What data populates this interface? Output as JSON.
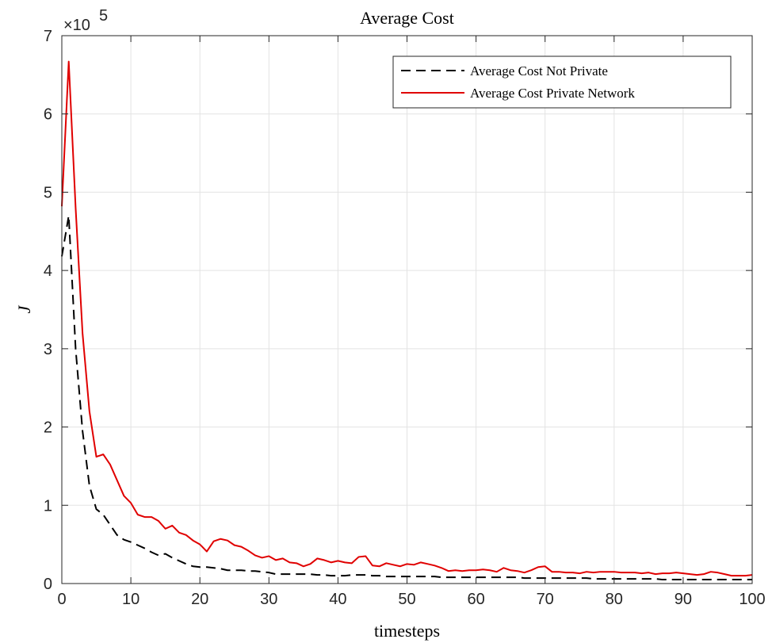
{
  "chart_data": {
    "type": "line",
    "title": "Average Cost",
    "xlabel": "timesteps",
    "ylabel": "J",
    "xlim": [
      0,
      100
    ],
    "ylim": [
      0,
      7
    ],
    "y_multiplier_base": "×10",
    "y_multiplier_exp": "5",
    "xticks": [
      0,
      10,
      20,
      30,
      40,
      50,
      60,
      70,
      80,
      90,
      100
    ],
    "yticks": [
      0,
      1,
      2,
      3,
      4,
      5,
      6,
      7
    ],
    "grid": true,
    "legend_position": "top-right",
    "series": [
      {
        "name": "Average Cost Not Private",
        "color": "#000000",
        "style": "dashed",
        "x": [
          0,
          1,
          2,
          3,
          4,
          5,
          6,
          7,
          8,
          9,
          10,
          11,
          12,
          13,
          14,
          15,
          16,
          17,
          18,
          19,
          20,
          21,
          22,
          23,
          24,
          25,
          26,
          27,
          28,
          29,
          30,
          31,
          32,
          33,
          34,
          35,
          36,
          37,
          38,
          39,
          40,
          41,
          42,
          43,
          44,
          45,
          46,
          47,
          48,
          49,
          50,
          51,
          52,
          53,
          54,
          55,
          56,
          57,
          58,
          59,
          60,
          61,
          62,
          63,
          64,
          65,
          66,
          67,
          68,
          69,
          70,
          71,
          72,
          73,
          74,
          75,
          76,
          77,
          78,
          79,
          80,
          81,
          82,
          83,
          84,
          85,
          86,
          87,
          88,
          89,
          90,
          91,
          92,
          93,
          94,
          95,
          96,
          97,
          98,
          99,
          100
        ],
        "y": [
          4.18,
          4.7,
          3.0,
          1.95,
          1.25,
          0.95,
          0.88,
          0.75,
          0.62,
          0.56,
          0.53,
          0.49,
          0.45,
          0.4,
          0.36,
          0.38,
          0.33,
          0.29,
          0.25,
          0.22,
          0.21,
          0.21,
          0.2,
          0.19,
          0.17,
          0.17,
          0.17,
          0.16,
          0.16,
          0.15,
          0.14,
          0.12,
          0.12,
          0.12,
          0.12,
          0.12,
          0.12,
          0.11,
          0.11,
          0.1,
          0.1,
          0.1,
          0.11,
          0.11,
          0.11,
          0.1,
          0.1,
          0.09,
          0.09,
          0.09,
          0.09,
          0.09,
          0.09,
          0.09,
          0.09,
          0.08,
          0.08,
          0.08,
          0.08,
          0.08,
          0.08,
          0.08,
          0.08,
          0.08,
          0.08,
          0.08,
          0.08,
          0.07,
          0.07,
          0.07,
          0.07,
          0.07,
          0.07,
          0.07,
          0.07,
          0.07,
          0.07,
          0.06,
          0.06,
          0.06,
          0.06,
          0.06,
          0.06,
          0.06,
          0.06,
          0.06,
          0.06,
          0.05,
          0.05,
          0.05,
          0.05,
          0.05,
          0.05,
          0.05,
          0.05,
          0.05,
          0.05,
          0.05,
          0.05,
          0.05,
          0.05
        ]
      },
      {
        "name": "Average Cost Private Network",
        "color": "#e00000",
        "style": "solid",
        "x": [
          0,
          1,
          2,
          3,
          4,
          5,
          6,
          7,
          8,
          9,
          10,
          11,
          12,
          13,
          14,
          15,
          16,
          17,
          18,
          19,
          20,
          21,
          22,
          23,
          24,
          25,
          26,
          27,
          28,
          29,
          30,
          31,
          32,
          33,
          34,
          35,
          36,
          37,
          38,
          39,
          40,
          41,
          42,
          43,
          44,
          45,
          46,
          47,
          48,
          49,
          50,
          51,
          52,
          53,
          54,
          55,
          56,
          57,
          58,
          59,
          60,
          61,
          62,
          63,
          64,
          65,
          66,
          67,
          68,
          69,
          70,
          71,
          72,
          73,
          74,
          75,
          76,
          77,
          78,
          79,
          80,
          81,
          82,
          83,
          84,
          85,
          86,
          87,
          88,
          89,
          90,
          91,
          92,
          93,
          94,
          95,
          96,
          97,
          98,
          99,
          100
        ],
        "y": [
          4.82,
          6.67,
          4.8,
          3.2,
          2.2,
          1.62,
          1.65,
          1.52,
          1.32,
          1.12,
          1.03,
          0.88,
          0.85,
          0.85,
          0.8,
          0.7,
          0.74,
          0.65,
          0.62,
          0.55,
          0.5,
          0.41,
          0.54,
          0.57,
          0.55,
          0.49,
          0.47,
          0.42,
          0.36,
          0.33,
          0.35,
          0.3,
          0.32,
          0.27,
          0.26,
          0.22,
          0.25,
          0.32,
          0.3,
          0.27,
          0.29,
          0.27,
          0.26,
          0.34,
          0.35,
          0.23,
          0.22,
          0.26,
          0.24,
          0.22,
          0.25,
          0.24,
          0.27,
          0.25,
          0.23,
          0.2,
          0.16,
          0.17,
          0.16,
          0.17,
          0.17,
          0.18,
          0.17,
          0.15,
          0.2,
          0.17,
          0.16,
          0.14,
          0.17,
          0.21,
          0.22,
          0.15,
          0.15,
          0.14,
          0.14,
          0.13,
          0.15,
          0.14,
          0.15,
          0.15,
          0.15,
          0.14,
          0.14,
          0.14,
          0.13,
          0.14,
          0.12,
          0.13,
          0.13,
          0.14,
          0.13,
          0.12,
          0.11,
          0.12,
          0.15,
          0.14,
          0.12,
          0.1,
          0.1,
          0.1,
          0.11
        ]
      }
    ]
  }
}
